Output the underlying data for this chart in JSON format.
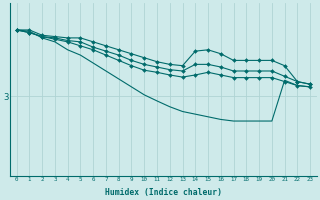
{
  "bg_color": "#ceeaea",
  "line_color": "#006b6b",
  "grid_color": "#afd4d4",
  "xlabel": "Humidex (Indice chaleur)",
  "x_ticks": [
    0,
    1,
    2,
    3,
    4,
    5,
    6,
    7,
    8,
    9,
    10,
    11,
    12,
    13,
    14,
    15,
    16,
    17,
    18,
    19,
    20,
    21,
    22,
    23
  ],
  "series": [
    [
      5.5,
      5.5,
      5.3,
      5.25,
      5.2,
      5.2,
      5.05,
      4.9,
      4.75,
      4.6,
      4.45,
      4.3,
      4.2,
      4.15,
      4.7,
      4.75,
      4.6,
      4.35,
      4.35,
      4.35,
      4.35,
      4.15,
      3.55,
      3.45
    ],
    [
      5.5,
      5.4,
      5.25,
      5.2,
      5.1,
      5.05,
      4.85,
      4.7,
      4.55,
      4.35,
      4.2,
      4.1,
      4.0,
      3.95,
      4.2,
      4.2,
      4.1,
      3.95,
      3.95,
      3.95,
      3.95,
      3.75,
      3.55,
      3.45
    ],
    [
      5.5,
      5.4,
      5.25,
      5.15,
      5.05,
      4.9,
      4.75,
      4.55,
      4.35,
      4.15,
      3.98,
      3.9,
      3.8,
      3.72,
      3.8,
      3.9,
      3.8,
      3.7,
      3.7,
      3.7,
      3.7,
      3.55,
      3.4,
      3.35
    ],
    [
      5.5,
      5.45,
      5.2,
      5.05,
      4.75,
      4.55,
      4.25,
      3.95,
      3.65,
      3.35,
      3.05,
      2.82,
      2.6,
      2.42,
      2.32,
      2.22,
      2.12,
      2.06,
      2.06,
      2.06,
      2.06,
      3.6,
      3.4,
      3.35
    ]
  ],
  "ylim": [
    0,
    6.5
  ],
  "xlim": [
    -0.5,
    23.5
  ],
  "ytick_val": 3
}
